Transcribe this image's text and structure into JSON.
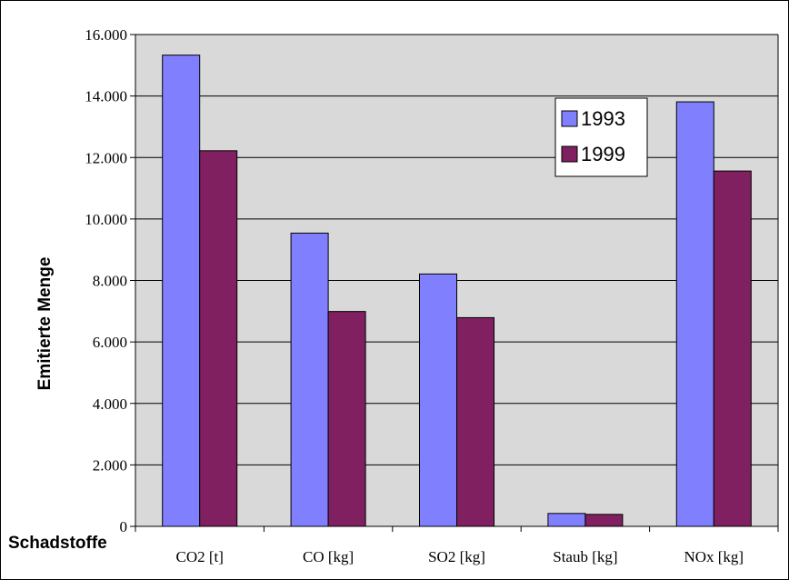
{
  "chart_data": {
    "type": "bar",
    "title": "",
    "xlabel": "Schadstoffe",
    "ylabel": "Emitierte Menge",
    "categories": [
      "CO2 [t]",
      "CO [kg]",
      "SO2 [kg]",
      "Staub [kg]",
      "NOx [kg]"
    ],
    "series": [
      {
        "name": "1993",
        "values": [
          15330,
          9540,
          8210,
          420,
          13810
        ],
        "color": "#8080FF"
      },
      {
        "name": "1999",
        "values": [
          12220,
          6990,
          6790,
          390,
          11560
        ],
        "color": "#802060"
      }
    ],
    "ylim": [
      0,
      16000
    ],
    "yticks": [
      0,
      2000,
      4000,
      6000,
      8000,
      10000,
      12000,
      14000,
      16000
    ],
    "ytick_labels": [
      "0",
      "2.000",
      "4.000",
      "6.000",
      "8.000",
      "10.000",
      "12.000",
      "14.000",
      "16.000"
    ],
    "grid": true,
    "plot_background": "#D9D9D9",
    "legend_position": "right"
  }
}
